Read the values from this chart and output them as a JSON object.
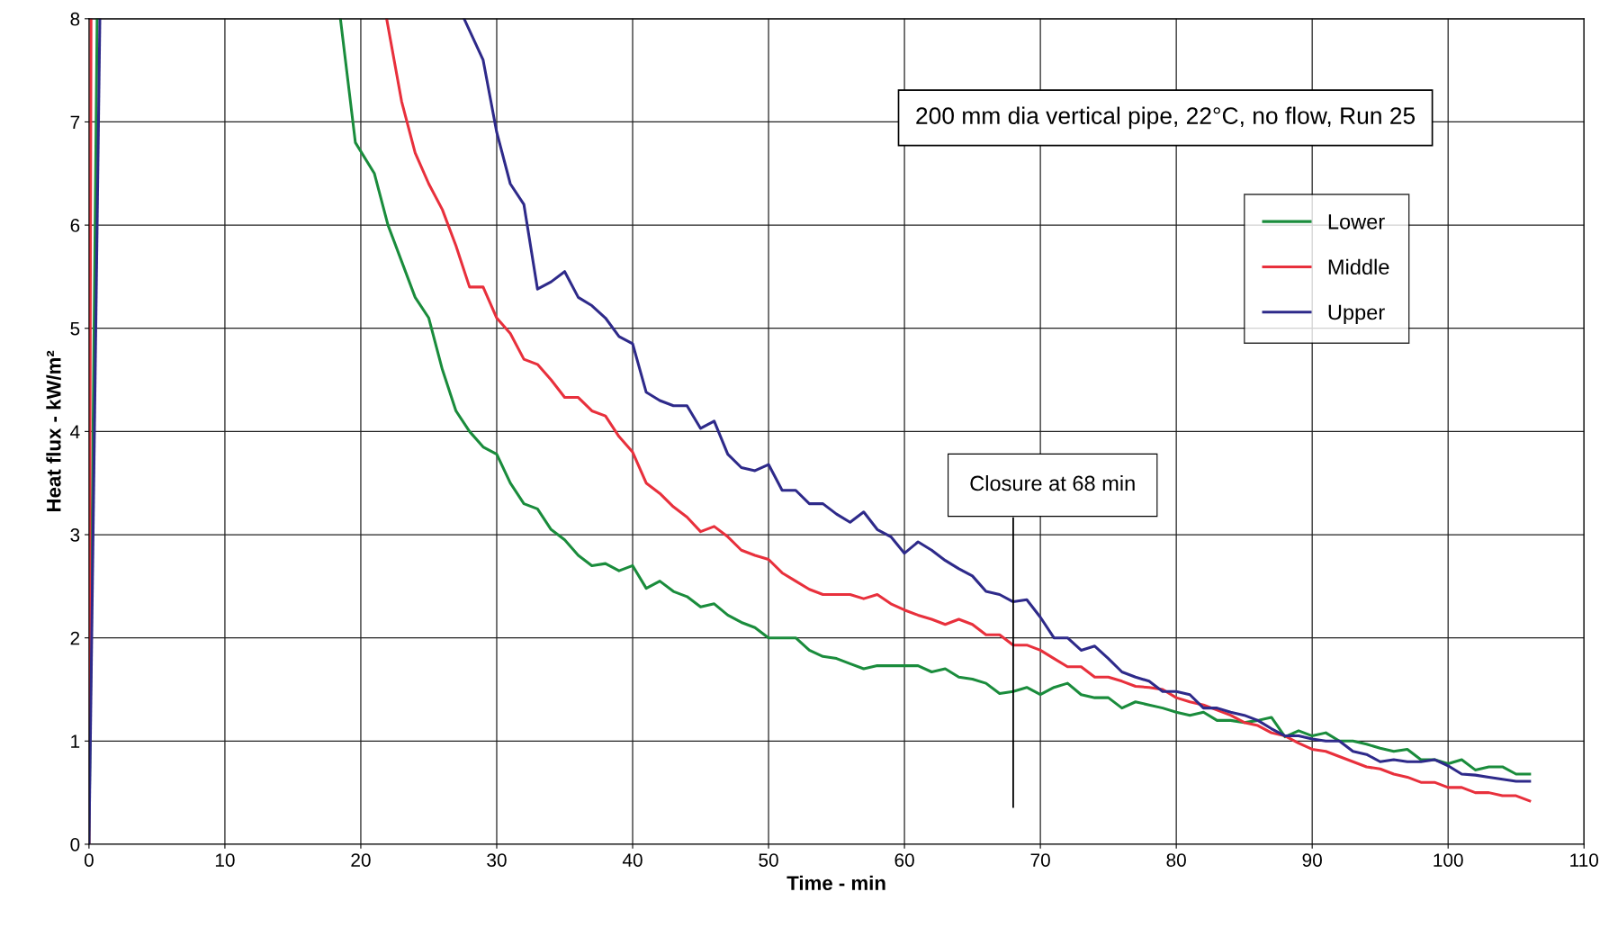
{
  "chart_data": {
    "type": "line",
    "title": "200 mm dia vertical pipe, 22°C, no flow, Run 25",
    "xlabel": "Time - min",
    "ylabel": "Heat flux - kW/m²",
    "xlim": [
      0,
      110
    ],
    "ylim": [
      0,
      8
    ],
    "xticks": [
      0,
      10,
      20,
      30,
      40,
      50,
      60,
      70,
      80,
      90,
      100,
      110
    ],
    "yticks": [
      0,
      1,
      2,
      3,
      4,
      5,
      6,
      7,
      8
    ],
    "grid": true,
    "legend": "top right",
    "marker": "none",
    "line_style": "solid",
    "ref_lines": [
      {
        "axis": "x",
        "value": 68,
        "label": "Closure at 68 min",
        "color": "#000000",
        "line_style": "solid"
      }
    ],
    "series": [
      {
        "name": "Lower",
        "color": "#1a8c3c",
        "x": [
          0,
          0.6,
          18.5,
          19.6,
          21,
          22,
          24,
          25,
          26,
          27,
          28,
          29,
          30,
          31,
          32,
          33,
          34,
          35,
          36,
          37,
          38,
          39,
          40,
          41,
          42,
          43,
          44,
          45,
          46,
          47,
          48,
          49,
          50,
          52,
          53,
          54,
          55,
          56,
          57,
          58,
          61,
          62,
          63,
          64,
          65,
          66,
          67,
          68,
          69,
          70,
          71,
          72,
          73,
          74,
          75,
          76,
          77,
          78,
          79,
          80,
          81,
          82,
          83,
          84,
          85,
          86,
          87,
          88,
          89,
          90,
          91,
          92,
          93,
          94,
          95,
          96,
          97,
          98,
          99,
          100,
          101,
          102,
          103,
          104,
          105,
          106
        ],
        "values": [
          0,
          8,
          8,
          6.8,
          6.5,
          6.0,
          5.3,
          5.1,
          4.6,
          4.2,
          4.0,
          3.85,
          3.78,
          3.5,
          3.3,
          3.25,
          3.05,
          2.95,
          2.8,
          2.7,
          2.72,
          2.65,
          2.7,
          2.48,
          2.55,
          2.45,
          2.4,
          2.3,
          2.33,
          2.22,
          2.15,
          2.1,
          2.0,
          2.0,
          1.88,
          1.82,
          1.8,
          1.75,
          1.7,
          1.73,
          1.73,
          1.67,
          1.7,
          1.62,
          1.6,
          1.56,
          1.46,
          1.48,
          1.52,
          1.45,
          1.52,
          1.56,
          1.45,
          1.42,
          1.42,
          1.32,
          1.38,
          1.35,
          1.32,
          1.28,
          1.25,
          1.28,
          1.2,
          1.2,
          1.18,
          1.2,
          1.23,
          1.04,
          1.1,
          1.05,
          1.08,
          1.0,
          1.0,
          0.97,
          0.93,
          0.9,
          0.92,
          0.82,
          0.82,
          0.78,
          0.82,
          0.72,
          0.75,
          0.75,
          0.68,
          0.68
        ]
      },
      {
        "name": "Middle",
        "color": "#e8303c",
        "x": [
          0,
          0.15,
          21.9,
          23,
          24,
          25,
          26,
          27,
          28,
          29,
          30,
          31,
          32,
          33,
          34,
          35,
          36,
          37,
          38,
          39,
          40,
          41,
          42,
          43,
          44,
          45,
          46,
          47,
          48,
          49,
          50,
          51,
          52,
          53,
          54,
          55,
          56,
          57,
          58,
          59,
          60,
          61,
          62,
          63,
          64,
          65,
          66,
          67,
          68,
          69,
          70,
          71,
          72,
          73,
          74,
          75,
          76,
          77,
          78,
          79,
          80,
          81,
          82,
          83,
          84,
          85,
          86,
          87,
          88,
          89,
          90,
          91,
          92,
          93,
          94,
          95,
          96,
          97,
          98,
          99,
          100,
          101,
          102,
          103,
          104,
          105,
          106
        ],
        "values": [
          0,
          8,
          8,
          7.2,
          6.7,
          6.4,
          6.15,
          5.8,
          5.4,
          5.4,
          5.1,
          4.95,
          4.7,
          4.65,
          4.5,
          4.33,
          4.33,
          4.2,
          4.15,
          3.95,
          3.8,
          3.5,
          3.4,
          3.27,
          3.17,
          3.03,
          3.08,
          2.98,
          2.85,
          2.8,
          2.76,
          2.63,
          2.55,
          2.47,
          2.42,
          2.42,
          2.42,
          2.38,
          2.42,
          2.33,
          2.27,
          2.22,
          2.18,
          2.13,
          2.18,
          2.13,
          2.03,
          2.03,
          1.93,
          1.93,
          1.88,
          1.8,
          1.72,
          1.72,
          1.62,
          1.62,
          1.58,
          1.53,
          1.52,
          1.5,
          1.42,
          1.38,
          1.35,
          1.3,
          1.25,
          1.18,
          1.15,
          1.08,
          1.05,
          0.98,
          0.92,
          0.9,
          0.85,
          0.8,
          0.75,
          0.73,
          0.68,
          0.65,
          0.6,
          0.6,
          0.55,
          0.55,
          0.5,
          0.5,
          0.47,
          0.47,
          0.42
        ]
      },
      {
        "name": "Upper",
        "color": "#2e2a8a",
        "x": [
          0,
          0.8,
          27.6,
          29,
          30,
          31,
          32,
          33,
          34,
          35,
          36,
          37,
          38,
          39,
          40,
          41,
          42,
          43,
          44,
          45,
          46,
          47,
          48,
          49,
          50,
          51,
          52,
          53,
          54,
          55,
          56,
          57,
          58,
          59,
          60,
          61,
          62,
          63,
          64,
          65,
          66,
          67,
          68,
          69,
          70,
          71,
          72,
          73,
          74,
          75,
          76,
          77,
          78,
          79,
          80,
          81,
          82,
          83,
          84,
          85,
          86,
          87,
          88,
          89,
          90,
          91,
          92,
          93,
          94,
          95,
          96,
          97,
          98,
          99,
          100,
          101,
          102,
          103,
          104,
          105,
          106
        ],
        "values": [
          0,
          8,
          8,
          7.6,
          6.9,
          6.4,
          6.2,
          5.38,
          5.45,
          5.55,
          5.3,
          5.22,
          5.1,
          4.92,
          4.85,
          4.38,
          4.3,
          4.25,
          4.25,
          4.03,
          4.1,
          3.78,
          3.65,
          3.62,
          3.68,
          3.43,
          3.43,
          3.3,
          3.3,
          3.2,
          3.12,
          3.22,
          3.05,
          2.98,
          2.82,
          2.93,
          2.85,
          2.75,
          2.67,
          2.6,
          2.45,
          2.42,
          2.35,
          2.37,
          2.2,
          2.0,
          2.0,
          1.88,
          1.92,
          1.8,
          1.67,
          1.62,
          1.58,
          1.48,
          1.48,
          1.45,
          1.32,
          1.32,
          1.28,
          1.25,
          1.2,
          1.12,
          1.05,
          1.05,
          1.02,
          1.0,
          1.0,
          0.9,
          0.87,
          0.8,
          0.82,
          0.8,
          0.8,
          0.82,
          0.76,
          0.68,
          0.67,
          0.65,
          0.63,
          0.61,
          0.61
        ]
      }
    ]
  }
}
